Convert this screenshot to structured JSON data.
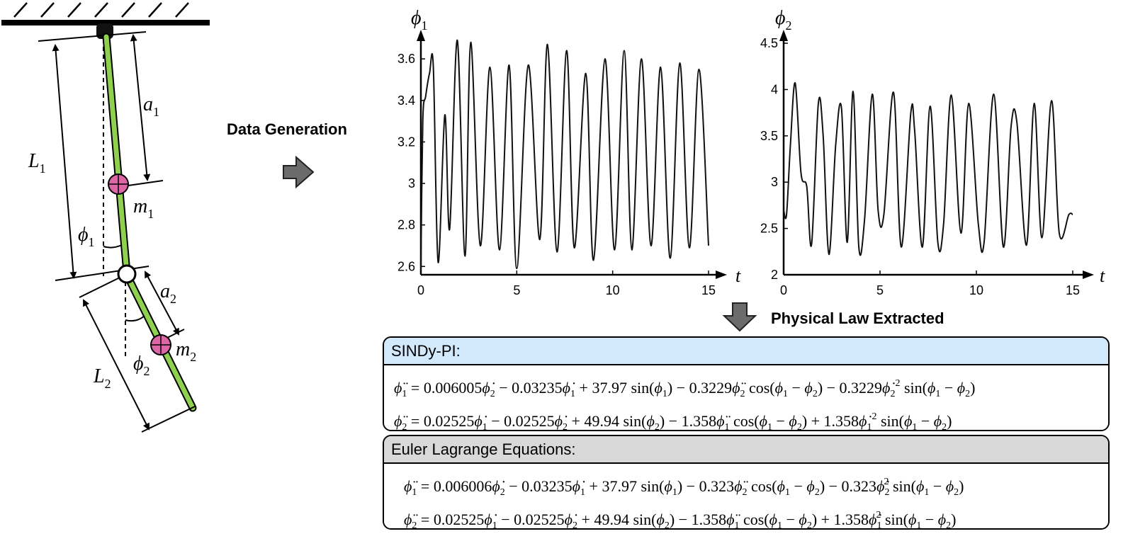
{
  "pendulum": {
    "labels": {
      "a1": "a",
      "a1_sub": "1",
      "a2": "a",
      "a2_sub": "2",
      "L1": "L",
      "L1_sub": "1",
      "L2": "L",
      "L2_sub": "2",
      "m1": "m",
      "m1_sub": "1",
      "m2": "m",
      "m2_sub": "2",
      "phi1": "ϕ",
      "phi1_sub": "1",
      "phi2": "ϕ",
      "phi2_sub": "2"
    },
    "colors": {
      "rod": "#8fd14f",
      "mass": "#dd67a6"
    }
  },
  "data_generation_label": "Data Generation",
  "physical_law_label": "Physical Law Extracted",
  "chart_data": [
    {
      "type": "line",
      "ylabel": "ϕ",
      "ylabel_sub": "1",
      "xlabel": "t",
      "xlim": [
        0,
        15
      ],
      "ylim": [
        2.56,
        3.72
      ],
      "xticks": [
        "0",
        "5",
        "10",
        "15"
      ],
      "yticks": [
        "2.6",
        "2.8",
        "3",
        "3.2",
        "3.4",
        "3.6"
      ],
      "ytick_values": [
        2.6,
        2.8,
        3.0,
        3.2,
        3.4,
        3.6
      ],
      "x": [
        0,
        0.1,
        0.25,
        0.45,
        0.65,
        0.9,
        1.25,
        1.5,
        1.9,
        2.3,
        2.6,
        3.1,
        3.6,
        4.1,
        4.6,
        5.0,
        5.6,
        6.2,
        6.6,
        7.1,
        7.6,
        8.0,
        8.6,
        9.0,
        9.6,
        10.1,
        10.6,
        11.0,
        11.5,
        12.0,
        12.5,
        13.0,
        13.5,
        14.0,
        14.5,
        15.0
      ],
      "y": [
        2.58,
        3.3,
        3.42,
        3.53,
        3.56,
        2.62,
        3.33,
        2.78,
        3.69,
        2.65,
        3.68,
        2.7,
        3.56,
        2.68,
        3.57,
        2.59,
        3.57,
        2.73,
        3.67,
        2.67,
        3.64,
        2.69,
        3.53,
        2.63,
        3.6,
        2.68,
        3.64,
        2.68,
        3.6,
        2.7,
        3.56,
        2.64,
        3.58,
        2.69,
        3.55,
        2.7
      ]
    },
    {
      "type": "line",
      "ylabel": "ϕ",
      "ylabel_sub": "2",
      "xlabel": "t",
      "xlim": [
        0,
        15
      ],
      "ylim": [
        2.0,
        4.6
      ],
      "xticks": [
        "0",
        "5",
        "10",
        "15"
      ],
      "yticks": [
        "2",
        "2.5",
        "3",
        "3.5",
        "4",
        "4.5"
      ],
      "ytick_values": [
        2.0,
        2.5,
        3.0,
        3.5,
        4.0,
        4.5
      ],
      "x": [
        0,
        0.15,
        0.35,
        0.6,
        0.9,
        1.2,
        1.45,
        1.8,
        2.05,
        2.35,
        2.7,
        3.0,
        3.3,
        3.6,
        3.9,
        4.2,
        4.6,
        4.9,
        5.2,
        5.7,
        6.1,
        6.6,
        6.8,
        7.2,
        7.6,
        8.0,
        8.3,
        8.7,
        9.2,
        9.6,
        10.1,
        10.4,
        10.9,
        11.4,
        11.8,
        12.1,
        12.6,
        13.0,
        13.4,
        13.9,
        14.3,
        14.8,
        15.0
      ],
      "y": [
        2.7,
        2.65,
        3.4,
        4.07,
        3.1,
        2.95,
        2.33,
        3.85,
        3.5,
        2.22,
        3.4,
        3.8,
        2.35,
        3.98,
        2.3,
        2.6,
        3.95,
        2.7,
        2.65,
        3.97,
        2.3,
        3.75,
        3.55,
        2.3,
        3.82,
        2.35,
        2.55,
        3.94,
        2.45,
        3.85,
        2.55,
        2.35,
        3.95,
        2.3,
        3.6,
        3.65,
        2.32,
        3.85,
        2.4,
        3.88,
        2.45,
        2.65,
        2.65
      ]
    }
  ],
  "sindy": {
    "title": "SINDy-PI:",
    "eq1": {
      "lhs": "ϕ",
      "lhs_sub": "1",
      "c1": "0.006005",
      "v1": "ϕ",
      "v1_sub": "2",
      "c2": "0.03235",
      "v2": "ϕ",
      "v2_sub": "1",
      "c3": "37.97",
      "f3": "sin(",
      "a3": "ϕ",
      "a3_sub": "1",
      "f3_end": ")",
      "c4": "0.3229",
      "v4": "ϕ",
      "v4_sub": "2",
      "f4": "cos(",
      "f4_arg": "ϕ",
      "f4_arg_sub1": "1",
      "f4_arg2": "ϕ",
      "f4_arg_sub2": "2",
      "f4_end": ")",
      "c5": "0.3229",
      "v5": "ϕ",
      "v5_sub": "2",
      "v5_sup": "2",
      "f5": "sin(",
      "f5_arg": "ϕ",
      "f5_arg_sub1": "1",
      "f5_arg2": "ϕ",
      "f5_arg_sub2": "2",
      "f5_end": ")"
    },
    "eq2": {
      "lhs": "ϕ",
      "lhs_sub": "2",
      "c1": "0.02525",
      "v1_sub": "1",
      "c2": "0.02525",
      "v2_sub": "2",
      "c3": "49.94",
      "a3_sub": "2",
      "c4": "1.358",
      "v4_sub": "1",
      "c5": "1.358",
      "v5_sub": "1",
      "v5_sup": "2"
    }
  },
  "euler": {
    "title": "Euler Lagrange Equations:",
    "eq1": {
      "c1": "0.006006",
      "c2": "0.03235",
      "c3": "37.97",
      "c4": "0.323",
      "c5": "0.323"
    },
    "eq2": {
      "c1": "0.02525",
      "c2": "0.02525",
      "c3": "49.94",
      "c4": "1.358",
      "c5": "1.358"
    }
  }
}
